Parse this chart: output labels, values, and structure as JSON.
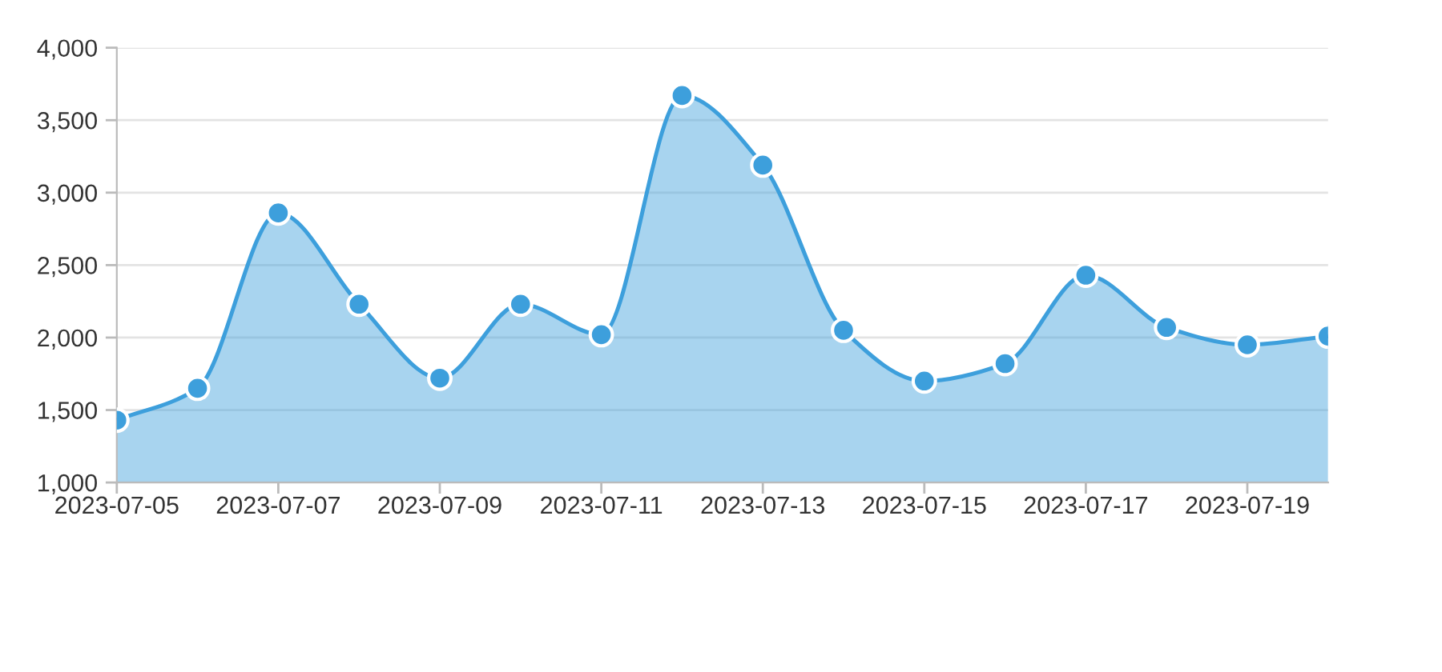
{
  "chart_data": {
    "type": "area",
    "x": [
      "2023-07-05",
      "2023-07-06",
      "2023-07-07",
      "2023-07-08",
      "2023-07-09",
      "2023-07-10",
      "2023-07-11",
      "2023-07-12",
      "2023-07-13",
      "2023-07-14",
      "2023-07-15",
      "2023-07-16",
      "2023-07-17",
      "2023-07-18",
      "2023-07-19",
      "2023-07-20"
    ],
    "values": [
      1430,
      1650,
      2860,
      2230,
      1720,
      2230,
      2020,
      3670,
      3190,
      2050,
      1700,
      1820,
      2430,
      2070,
      1950,
      2010
    ],
    "color": "#3d9fdc",
    "marker": "circle",
    "xlim": [
      "2023-07-05",
      "2023-07-20"
    ],
    "xticks": [
      "2023-07-05",
      "2023-07-07",
      "2023-07-09",
      "2023-07-11",
      "2023-07-13",
      "2023-07-15",
      "2023-07-17",
      "2023-07-19"
    ],
    "ylim": [
      1000,
      4000
    ],
    "yticks": [
      {
        "value": 1000,
        "label": "1,000"
      },
      {
        "value": 1500,
        "label": "1,500"
      },
      {
        "value": 2000,
        "label": "2,000"
      },
      {
        "value": 2500,
        "label": "2,500"
      },
      {
        "value": 3000,
        "label": "3,000"
      },
      {
        "value": 3500,
        "label": "3,500"
      },
      {
        "value": 4000,
        "label": "4,000"
      }
    ],
    "grid": "y"
  }
}
